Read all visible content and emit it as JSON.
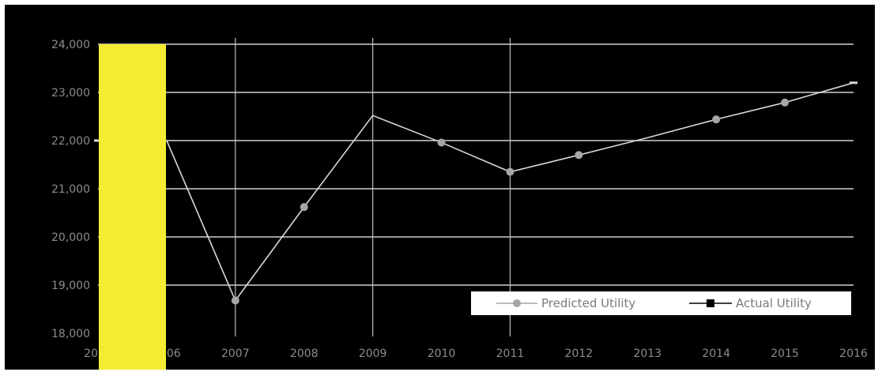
{
  "chart_data": {
    "type": "line",
    "title": "",
    "xlabel": "",
    "ylabel": "",
    "x": [
      2005,
      2006,
      2007,
      2008,
      2009,
      2010,
      2011,
      2012,
      2013,
      2014,
      2015,
      2016
    ],
    "x_tick_labels": [
      "2005",
      "2006",
      "2007",
      "2008",
      "2009",
      "2010",
      "2011",
      "2012",
      "2013",
      "2014",
      "2015",
      "2016"
    ],
    "ylim": [
      18000,
      24000
    ],
    "y_ticks": [
      18000,
      19000,
      20000,
      21000,
      22000,
      23000,
      24000
    ],
    "y_tick_labels": [
      "18,000",
      "19,000",
      "20,000",
      "21,000",
      "22,000",
      "23,000",
      "24,000"
    ],
    "grid": true,
    "legend_position": "bottom-right",
    "series": [
      {
        "name": "Predicted Utility",
        "color": "#a6a6a6",
        "marker": "circle",
        "values": [
          null,
          null,
          18680,
          20620,
          null,
          21960,
          21350,
          21700,
          null,
          22440,
          22790,
          null
        ]
      },
      {
        "name": "Actual Utility",
        "color": "#d9d9d9",
        "marker": "square",
        "values": [
          22000,
          22000,
          18680,
          20620,
          22520,
          21960,
          21350,
          21700,
          22060,
          22440,
          22790,
          23200
        ]
      }
    ],
    "vertical_highlight_years": [
      2007,
      2009,
      2011
    ],
    "overlay_color": "#f5ec32"
  }
}
